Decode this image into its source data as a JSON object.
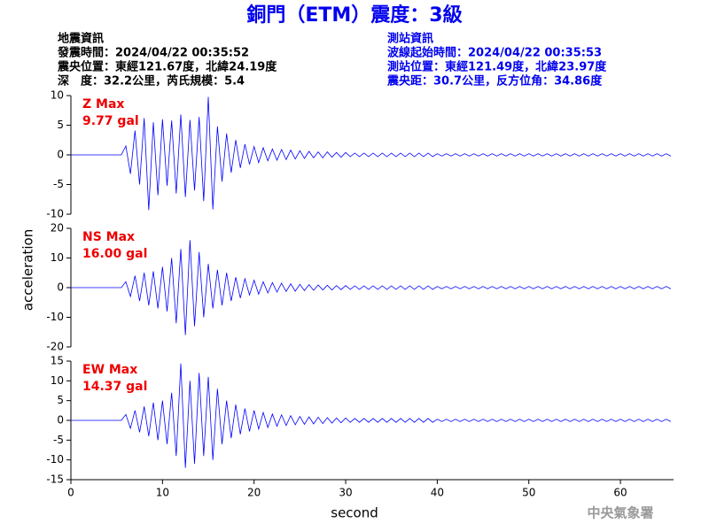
{
  "header": {
    "title": "銅門（ETM）震度：3級",
    "left": [
      "地震資訊",
      "發震時間：2024/04/22 00:35:52",
      "震央位置：東經121.67度，北緯24.19度",
      "深　度：32.2公里，芮氏規模：5.4"
    ],
    "right": [
      "測站資訊",
      "波線起始時間：2024/04/22 00:35:53",
      "測站位置：東經121.49度，北緯23.97度",
      "震央距：30.7公里，反方位角：34.86度"
    ]
  },
  "footer": "中央氣象署",
  "chart_data": [
    {
      "type": "line",
      "annotation": [
        "Z Max",
        "9.77 gal"
      ],
      "color": "#0000ff",
      "xlim": [
        0,
        65.8
      ],
      "ylim": [
        -10,
        10
      ],
      "yticks": [
        -10,
        -5,
        0,
        5,
        10
      ],
      "x": [
        0,
        0.5,
        1,
        1.5,
        2,
        2.5,
        3,
        3.5,
        4,
        4.5,
        5,
        5.5,
        6,
        6.5,
        7,
        7.5,
        8,
        8.5,
        9,
        9.5,
        10,
        10.5,
        11,
        11.5,
        12,
        12.5,
        13,
        13.5,
        14,
        14.5,
        15,
        15.5,
        16,
        16.5,
        17,
        17.5,
        18,
        18.5,
        19,
        19.5,
        20,
        20.5,
        21,
        21.5,
        22,
        22.5,
        23,
        23.5,
        24,
        24.5,
        25,
        25.5,
        26,
        26.5,
        27,
        27.5,
        28,
        28.5,
        29,
        29.5,
        30,
        30.5,
        31,
        31.5,
        32,
        32.5,
        33,
        33.5,
        34,
        34.5,
        35,
        35.5,
        36,
        36.5,
        37,
        37.5,
        38,
        38.5,
        39,
        39.5,
        40,
        40.5,
        41,
        41.5,
        42,
        42.5,
        43,
        43.5,
        44,
        44.5,
        45,
        45.5,
        46,
        46.5,
        47,
        47.5,
        48,
        48.5,
        49,
        49.5,
        50,
        50.5,
        51,
        51.5,
        52,
        52.5,
        53,
        53.5,
        54,
        54.5,
        55,
        55.5,
        56,
        56.5,
        57,
        57.5,
        58,
        58.5,
        59,
        59.5,
        60,
        60.5,
        61,
        61.5,
        62,
        62.5,
        63,
        63.5,
        64,
        64.5,
        65,
        65.5
      ],
      "values": [
        0,
        0,
        0,
        0,
        0,
        0,
        0,
        0,
        0,
        0,
        0,
        0,
        1.5,
        -3.2,
        4.1,
        -5.0,
        6.2,
        -9.3,
        5.5,
        -6.8,
        6.0,
        -5.2,
        5.8,
        -6.5,
        6.8,
        -7.1,
        5.9,
        -6.0,
        6.4,
        -7.8,
        9.77,
        -9.2,
        4.8,
        -4.5,
        3.6,
        -3.0,
        2.5,
        -2.2,
        1.8,
        -1.6,
        1.4,
        -1.3,
        1.2,
        -1.0,
        1.0,
        -0.9,
        0.9,
        -0.8,
        0.8,
        -0.7,
        0.7,
        -0.6,
        0.6,
        -0.5,
        0.5,
        -0.5,
        0.5,
        -0.4,
        0.4,
        -0.4,
        0.4,
        -0.3,
        0.3,
        -0.3,
        0.3,
        -0.3,
        0.3,
        -0.3,
        0.3,
        -0.3,
        0.3,
        -0.3,
        0.3,
        -0.3,
        0.3,
        -0.3,
        0.3,
        -0.3,
        0.3,
        -0.3,
        0.2,
        -0.2,
        0.2,
        -0.2,
        0.2,
        -0.2,
        0.2,
        -0.2,
        0.2,
        -0.2,
        0.2,
        -0.2,
        0.2,
        -0.2,
        0.2,
        -0.2,
        0.2,
        -0.2,
        0.2,
        -0.2,
        0.2,
        -0.2,
        0.2,
        -0.2,
        0.2,
        -0.2,
        0.2,
        -0.2,
        0.2,
        -0.2,
        0.2,
        -0.2,
        0.2,
        -0.2,
        0.2,
        -0.2,
        0.2,
        -0.2,
        0.2,
        -0.2,
        0.2,
        -0.2,
        0.2,
        -0.2,
        0.2,
        -0.2,
        0.2,
        -0.2,
        0.2,
        -0.2,
        0.2,
        -0.2
      ]
    },
    {
      "type": "line",
      "annotation": [
        "NS Max",
        "16.00 gal"
      ],
      "color": "#0000ff",
      "ylabel": "acceleration",
      "xlim": [
        0,
        65.8
      ],
      "ylim": [
        -20,
        20
      ],
      "yticks": [
        -20,
        -10,
        0,
        10,
        20
      ],
      "x": [
        0,
        0.5,
        1,
        1.5,
        2,
        2.5,
        3,
        3.5,
        4,
        4.5,
        5,
        5.5,
        6,
        6.5,
        7,
        7.5,
        8,
        8.5,
        9,
        9.5,
        10,
        10.5,
        11,
        11.5,
        12,
        12.5,
        13,
        13.5,
        14,
        14.5,
        15,
        15.5,
        16,
        16.5,
        17,
        17.5,
        18,
        18.5,
        19,
        19.5,
        20,
        20.5,
        21,
        21.5,
        22,
        22.5,
        23,
        23.5,
        24,
        24.5,
        25,
        25.5,
        26,
        26.5,
        27,
        27.5,
        28,
        28.5,
        29,
        29.5,
        30,
        30.5,
        31,
        31.5,
        32,
        32.5,
        33,
        33.5,
        34,
        34.5,
        35,
        35.5,
        36,
        36.5,
        37,
        37.5,
        38,
        38.5,
        39,
        39.5,
        40,
        40.5,
        41,
        41.5,
        42,
        42.5,
        43,
        43.5,
        44,
        44.5,
        45,
        45.5,
        46,
        46.5,
        47,
        47.5,
        48,
        48.5,
        49,
        49.5,
        50,
        50.5,
        51,
        51.5,
        52,
        52.5,
        53,
        53.5,
        54,
        54.5,
        55,
        55.5,
        56,
        56.5,
        57,
        57.5,
        58,
        58.5,
        59,
        59.5,
        60,
        60.5,
        61,
        61.5,
        62,
        62.5,
        63,
        63.5,
        64,
        64.5,
        65,
        65.5
      ],
      "values": [
        0,
        0,
        0,
        0,
        0,
        0,
        0,
        0,
        0,
        0,
        0,
        0,
        2,
        -3,
        4,
        -4.5,
        5,
        -6,
        5.5,
        -7,
        7,
        -8,
        10,
        -12,
        13,
        -16,
        16,
        -13,
        12,
        -10,
        8,
        -7,
        6,
        -6,
        5,
        -4.5,
        3.5,
        -3.5,
        3,
        -2.5,
        2.5,
        -2.2,
        2,
        -1.8,
        1.7,
        -1.5,
        1.5,
        -1.3,
        1.3,
        -1.2,
        1.1,
        -1,
        1,
        -0.9,
        0.9,
        -0.8,
        0.8,
        -0.8,
        0.7,
        -0.7,
        0.7,
        -0.6,
        0.6,
        -0.6,
        0.6,
        -0.6,
        0.6,
        -0.6,
        0.6,
        -0.6,
        0.6,
        -0.6,
        0.6,
        -0.6,
        0.6,
        -0.6,
        0.6,
        -0.6,
        0.6,
        -0.6,
        0.4,
        -0.4,
        0.4,
        -0.4,
        0.4,
        -0.4,
        0.4,
        -0.4,
        0.4,
        -0.4,
        0.4,
        -0.4,
        0.4,
        -0.4,
        0.4,
        -0.4,
        0.4,
        -0.4,
        0.4,
        -0.4,
        0.4,
        -0.4,
        0.4,
        -0.4,
        0.4,
        -0.4,
        0.4,
        -0.4,
        0.4,
        -0.4,
        0.4,
        -0.4,
        0.4,
        -0.4,
        0.4,
        -0.4,
        0.4,
        -0.4,
        0.4,
        -0.4,
        0.4,
        -0.4,
        0.4,
        -0.4,
        0.4,
        -0.4,
        0.4,
        -0.4,
        0.4,
        -0.4,
        0.4,
        -0.4
      ]
    },
    {
      "type": "line",
      "annotation": [
        "EW Max",
        "14.37 gal"
      ],
      "color": "#0000ff",
      "xlabel": "second",
      "xlim": [
        0,
        65.8
      ],
      "ylim": [
        -15,
        15
      ],
      "yticks": [
        -15,
        -10,
        -5,
        0,
        5,
        10,
        15
      ],
      "xticks": [
        0,
        10,
        20,
        30,
        40,
        50,
        60
      ],
      "x": [
        0,
        0.5,
        1,
        1.5,
        2,
        2.5,
        3,
        3.5,
        4,
        4.5,
        5,
        5.5,
        6,
        6.5,
        7,
        7.5,
        8,
        8.5,
        9,
        9.5,
        10,
        10.5,
        11,
        11.5,
        12,
        12.5,
        13,
        13.5,
        14,
        14.5,
        15,
        15.5,
        16,
        16.5,
        17,
        17.5,
        18,
        18.5,
        19,
        19.5,
        20,
        20.5,
        21,
        21.5,
        22,
        22.5,
        23,
        23.5,
        24,
        24.5,
        25,
        25.5,
        26,
        26.5,
        27,
        27.5,
        28,
        28.5,
        29,
        29.5,
        30,
        30.5,
        31,
        31.5,
        32,
        32.5,
        33,
        33.5,
        34,
        34.5,
        35,
        35.5,
        36,
        36.5,
        37,
        37.5,
        38,
        38.5,
        39,
        39.5,
        40,
        40.5,
        41,
        41.5,
        42,
        42.5,
        43,
        43.5,
        44,
        44.5,
        45,
        45.5,
        46,
        46.5,
        47,
        47.5,
        48,
        48.5,
        49,
        49.5,
        50,
        50.5,
        51,
        51.5,
        52,
        52.5,
        53,
        53.5,
        54,
        54.5,
        55,
        55.5,
        56,
        56.5,
        57,
        57.5,
        58,
        58.5,
        59,
        59.5,
        60,
        60.5,
        61,
        61.5,
        62,
        62.5,
        63,
        63.5,
        64,
        64.5,
        65,
        65.5
      ],
      "values": [
        0,
        0,
        0,
        0,
        0,
        0,
        0,
        0,
        0,
        0,
        0,
        0,
        1.5,
        -2,
        2.5,
        -3,
        3.5,
        -4,
        4.5,
        -5,
        5,
        -6,
        7,
        -9,
        14.37,
        -12,
        10,
        -11,
        12,
        -9,
        11,
        -10,
        8,
        -6,
        5,
        -4.5,
        4,
        -3.5,
        3,
        -2.8,
        2.5,
        -2.2,
        2,
        -1.8,
        1.6,
        -1.5,
        1.4,
        -1.3,
        1.2,
        -1.1,
        1,
        -1,
        0.9,
        -0.9,
        0.8,
        -0.8,
        0.7,
        -0.7,
        0.6,
        -0.6,
        0.6,
        -0.5,
        0.5,
        -0.5,
        0.5,
        -0.5,
        0.5,
        -0.5,
        0.5,
        -0.5,
        0.5,
        -0.5,
        0.5,
        -0.5,
        0.5,
        -0.5,
        0.5,
        -0.5,
        0.5,
        -0.5,
        0.3,
        -0.3,
        0.3,
        -0.3,
        0.3,
        -0.3,
        0.3,
        -0.3,
        0.3,
        -0.3,
        0.3,
        -0.3,
        0.3,
        -0.3,
        0.3,
        -0.3,
        0.3,
        -0.3,
        0.3,
        -0.3,
        0.3,
        -0.3,
        0.3,
        -0.3,
        0.3,
        -0.3,
        0.3,
        -0.3,
        0.3,
        -0.3,
        0.3,
        -0.3,
        0.3,
        -0.3,
        0.3,
        -0.3,
        0.3,
        -0.3,
        0.3,
        -0.3,
        0.3,
        -0.3,
        0.3,
        -0.3,
        0.3,
        -0.3,
        0.3,
        -0.3,
        0.3,
        -0.3,
        0.3,
        -0.3
      ]
    }
  ]
}
